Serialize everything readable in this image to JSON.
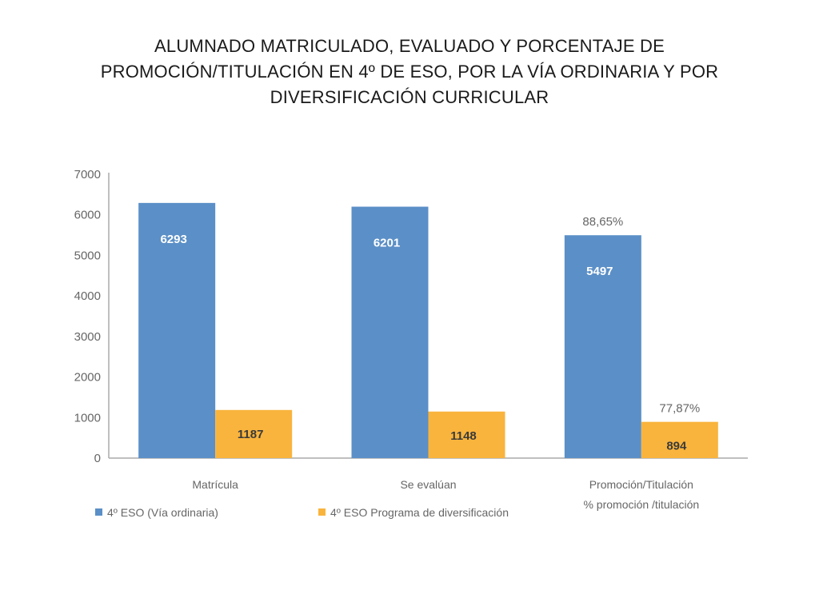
{
  "title_lines": [
    "ALUMNADO MATRICULADO, EVALUADO Y PORCENTAJE DE",
    "PROMOCIÓN/TITULACIÓN EN 4º DE ESO, POR LA VÍA ORDINARIA Y POR",
    "DIVERSIFICACIÓN CURRICULAR"
  ],
  "chart_data": {
    "type": "bar",
    "title": "ALUMNADO MATRICULADO, EVALUADO Y PORCENTAJE DE PROMOCIÓN/TITULACIÓN EN 4º DE ESO, POR LA VÍA ORDINARIA Y POR DIVERSIFICACIÓN CURRICULAR",
    "categories": [
      [
        "Matrícula"
      ],
      [
        "Se evalúan"
      ],
      [
        "Promoción/Titulación",
        "% promoción  /titulación"
      ]
    ],
    "series": [
      {
        "name": "4º ESO (Vía ordinaria)",
        "color": "#5b8fc7",
        "values": [
          6293,
          6201,
          5497
        ],
        "labels": [
          "6293",
          "6201",
          "5497"
        ]
      },
      {
        "name": "4º ESO Programa de diversificación",
        "color": "#f9b43d",
        "values": [
          1187,
          1148,
          894
        ],
        "labels": [
          "1187",
          "1148",
          "894"
        ]
      }
    ],
    "annotations": [
      {
        "category": 2,
        "series": 0,
        "text": "88,65%"
      },
      {
        "category": 2,
        "series": 1,
        "text": "77,87%"
      }
    ],
    "ylim": [
      0,
      7000
    ],
    "yticks": [
      0,
      1000,
      2000,
      3000,
      4000,
      5000,
      6000,
      7000
    ],
    "legend_position": "bottom-left",
    "grid": false,
    "xlabel": "",
    "ylabel": ""
  }
}
